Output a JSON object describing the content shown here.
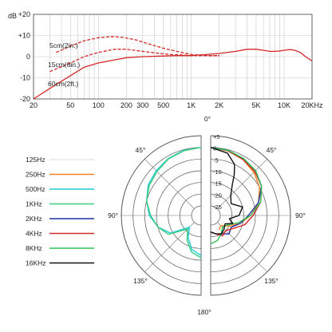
{
  "chart_data": [
    {
      "type": "line",
      "x_scale": "log",
      "xlim": [
        20,
        20000
      ],
      "ylim": [
        -20,
        20
      ],
      "ylabel": "dB",
      "y_ticks": [
        {
          "v": 20,
          "label": "+20"
        },
        {
          "v": 10,
          "label": "+10"
        },
        {
          "v": 0,
          "label": "0"
        },
        {
          "v": -10,
          "label": "-10"
        },
        {
          "v": -20,
          "label": "-20"
        }
      ],
      "x_ticks": [
        {
          "v": 20,
          "label": "20"
        },
        {
          "v": 50,
          "label": "50"
        },
        {
          "v": 100,
          "label": "100"
        },
        {
          "v": 200,
          "label": "200"
        },
        {
          "v": 300,
          "label": "300"
        },
        {
          "v": 500,
          "label": "500"
        },
        {
          "v": 1000,
          "label": "1K"
        },
        {
          "v": 2000,
          "label": "2K"
        },
        {
          "v": 5000,
          "label": "5K"
        },
        {
          "v": 10000,
          "label": "10K"
        },
        {
          "v": 20000,
          "label": "20KHz"
        }
      ],
      "grid": true,
      "series": [
        {
          "name": "5cm(2in.)",
          "color": "#d62828",
          "dash": true,
          "x": [
            35,
            50,
            70,
            100,
            140,
            180,
            250,
            350,
            500,
            700,
            1000,
            1500,
            2000
          ],
          "y": [
            2,
            5,
            7.5,
            9,
            9.5,
            9.2,
            8,
            6,
            4,
            2.5,
            1,
            0.5,
            0.5
          ]
        },
        {
          "name": "15cm(6in.)",
          "color": "#d62828",
          "dash": true,
          "x": [
            30,
            50,
            70,
            100,
            150,
            200,
            300,
            400,
            600,
            800,
            1000,
            1500,
            2000
          ],
          "y": [
            -7,
            -3,
            0,
            2,
            3.5,
            3.5,
            2.5,
            1.8,
            1,
            0.8,
            0.5,
            0.5,
            0.5
          ]
        },
        {
          "name": "60cm(2ft.)",
          "color": "#d62828",
          "dash": false,
          "x": [
            20,
            30,
            50,
            70,
            100,
            150,
            200,
            300,
            500,
            700,
            1000,
            2000,
            3000,
            4000,
            5000,
            6000,
            7000,
            8000,
            9000,
            10000,
            11000,
            12000,
            13000,
            15000,
            17000,
            20000
          ],
          "y": [
            -20,
            -15,
            -9,
            -5,
            -3,
            -1.5,
            -0.5,
            0,
            0.3,
            0.5,
            0.5,
            1.5,
            2.5,
            3.5,
            3.5,
            3,
            2.5,
            2.5,
            2.7,
            3,
            3.3,
            3.3,
            3,
            2,
            0,
            -2
          ]
        }
      ]
    },
    {
      "type": "polar",
      "r_range": [
        -25,
        5
      ],
      "r_ticks": [
        {
          "v": 5,
          "label": "+5"
        },
        {
          "v": 0,
          "label": "0"
        },
        {
          "v": -5,
          "label": "-5"
        },
        {
          "v": -10,
          "label": "-10"
        },
        {
          "v": -15,
          "label": "-15"
        },
        {
          "v": -20,
          "label": "-20"
        },
        {
          "v": -25,
          "label": "-25"
        }
      ],
      "angle_labels": [
        {
          "deg": 0,
          "label": "0°"
        },
        {
          "deg": 45,
          "label": "45°"
        },
        {
          "deg": 90,
          "label": "90°"
        },
        {
          "deg": 135,
          "label": "135°"
        },
        {
          "deg": 180,
          "label": "180°"
        },
        {
          "deg": -45,
          "label": "45°"
        },
        {
          "deg": -90,
          "label": "90°"
        },
        {
          "deg": -135,
          "label": "135°"
        }
      ],
      "series": [
        {
          "name": "125Hz",
          "color": "#e6e6e6",
          "side": "left",
          "pts": []
        },
        {
          "name": "250Hz",
          "color": "#f4832a",
          "side": "right",
          "pts": [
            [
              0,
              0
            ],
            [
              15,
              -0.5
            ],
            [
              30,
              -1.5
            ],
            [
              45,
              -3
            ],
            [
              60,
              -5
            ],
            [
              75,
              -8
            ],
            [
              90,
              -12
            ],
            [
              105,
              -16
            ],
            [
              120,
              -20
            ],
            [
              135,
              -23
            ],
            [
              150,
              -22
            ]
          ]
        },
        {
          "name": "500Hz",
          "color": "#22c9d6",
          "side": "left",
          "pts": [
            [
              0,
              0
            ],
            [
              15,
              -0.3
            ],
            [
              30,
              -1
            ],
            [
              45,
              -2
            ],
            [
              60,
              -3
            ],
            [
              75,
              -5
            ],
            [
              90,
              -7
            ],
            [
              105,
              -10
            ],
            [
              120,
              -14
            ],
            [
              135,
              -22
            ],
            [
              150,
              -18
            ],
            [
              165,
              -14
            ],
            [
              180,
              -12
            ]
          ]
        },
        {
          "name": "1KHz",
          "color": "#3ccf7e",
          "side": "left",
          "pts": [
            [
              0,
              0
            ],
            [
              15,
              -0.5
            ],
            [
              30,
              -1.2
            ],
            [
              45,
              -2.5
            ],
            [
              60,
              -3.5
            ],
            [
              75,
              -5
            ],
            [
              90,
              -7.5
            ],
            [
              105,
              -10
            ],
            [
              120,
              -13
            ],
            [
              135,
              -21
            ],
            [
              150,
              -17
            ],
            [
              165,
              -13
            ],
            [
              180,
              -11
            ]
          ]
        },
        {
          "name": "2KHz",
          "color": "#1f2fa0",
          "side": "right",
          "pts": [
            [
              0,
              0
            ],
            [
              15,
              -0.3
            ],
            [
              30,
              -1
            ],
            [
              45,
              -2
            ],
            [
              60,
              -4
            ],
            [
              75,
              -8
            ],
            [
              90,
              -13
            ],
            [
              105,
              -16
            ],
            [
              120,
              -19
            ],
            [
              135,
              -18
            ],
            [
              150,
              -20
            ],
            [
              165,
              -21
            ],
            [
              180,
              -22
            ]
          ]
        },
        {
          "name": "4KHz",
          "color": "#d62828",
          "side": "right",
          "pts": [
            [
              0,
              0
            ],
            [
              15,
              -0.5
            ],
            [
              30,
              -1.5
            ],
            [
              45,
              -2.5
            ],
            [
              60,
              -4
            ],
            [
              75,
              -7
            ],
            [
              90,
              -11
            ],
            [
              105,
              -14
            ],
            [
              120,
              -18
            ],
            [
              135,
              -20
            ],
            [
              150,
              -19
            ],
            [
              165,
              -21
            ],
            [
              180,
              -22
            ]
          ]
        },
        {
          "name": "8KHz",
          "color": "#2ec255",
          "side": "right",
          "pts": [
            [
              0,
              0
            ],
            [
              15,
              -0.3
            ],
            [
              30,
              -1
            ],
            [
              45,
              -2
            ],
            [
              60,
              -4
            ],
            [
              75,
              -7
            ],
            [
              90,
              -12
            ],
            [
              105,
              -17
            ],
            [
              120,
              -21
            ],
            [
              135,
              -22
            ],
            [
              150,
              -20
            ],
            [
              165,
              -18
            ],
            [
              180,
              -17
            ]
          ]
        },
        {
          "name": "16KHz",
          "color": "#111111",
          "side": "right",
          "pts": [
            [
              0,
              0
            ],
            [
              15,
              -1.5
            ],
            [
              25,
              -5
            ],
            [
              30,
              -9
            ],
            [
              35,
              -13
            ],
            [
              45,
              -17
            ],
            [
              60,
              -19
            ],
            [
              75,
              -15
            ],
            [
              90,
              -17
            ],
            [
              100,
              -21
            ],
            [
              110,
              -19
            ],
            [
              120,
              -22
            ],
            [
              135,
              -21
            ],
            [
              150,
              -20
            ],
            [
              165,
              -21
            ],
            [
              180,
              -22
            ]
          ]
        }
      ]
    }
  ]
}
